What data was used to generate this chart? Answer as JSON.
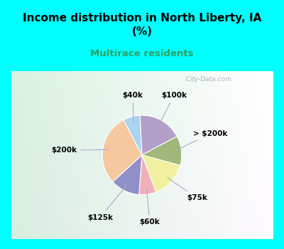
{
  "title": "Income distribution in North Liberty, IA\n(%)",
  "subtitle": "Multirace residents",
  "title_fontsize": 11,
  "subtitle_fontsize": 9.5,
  "slices": [
    {
      "label": "$40k",
      "value": 7,
      "color": "#aad4f0"
    },
    {
      "label": "$100k",
      "value": 18,
      "color": "#b3a0c8"
    },
    {
      "label": "> $200k",
      "value": 12,
      "color": "#a0b87a"
    },
    {
      "label": "$75k",
      "value": 15,
      "color": "#f0f0a0"
    },
    {
      "label": "$60k",
      "value": 7,
      "color": "#f0b0b8"
    },
    {
      "label": "$125k",
      "value": 12,
      "color": "#9090c8"
    },
    {
      "label": "$200k",
      "value": 29,
      "color": "#f5c8a0"
    }
  ],
  "bg_cyan": "#00ffff",
  "watermark": "  City-Data.com",
  "startangle": 118,
  "label_fontsize": 7.5
}
